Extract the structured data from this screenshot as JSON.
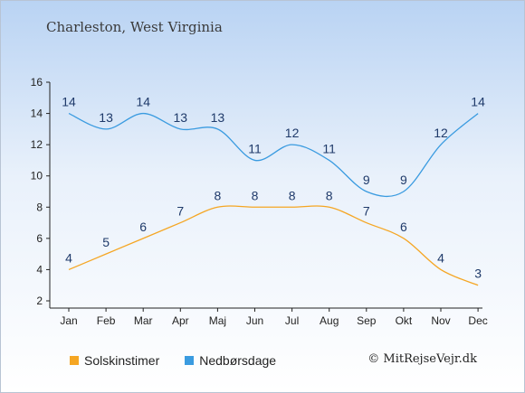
{
  "title": "Charleston, West Virginia",
  "credit": "© MitRejseVejr.dk",
  "colors": {
    "sun": "#f5a623",
    "rain": "#3a9be0",
    "text": "#1f3a6a",
    "axis": "#222222"
  },
  "chart_data": {
    "type": "line",
    "categories": [
      "Jan",
      "Feb",
      "Mar",
      "Apr",
      "Maj",
      "Jun",
      "Jul",
      "Aug",
      "Sep",
      "Okt",
      "Nov",
      "Dec"
    ],
    "ylim": [
      2,
      16
    ],
    "yticks": [
      2,
      4,
      6,
      8,
      10,
      12,
      14,
      16
    ],
    "grid": false,
    "legend_position": "bottom-left",
    "series": [
      {
        "name": "Solskinstimer",
        "color": "#f5a623",
        "values": [
          4,
          5,
          6,
          7,
          8,
          8,
          8,
          8,
          7,
          6,
          4,
          3
        ]
      },
      {
        "name": "Nedbørsdage",
        "color": "#3a9be0",
        "values": [
          14,
          13,
          14,
          13,
          13,
          11,
          12,
          11,
          9,
          9,
          12,
          14
        ]
      }
    ]
  }
}
